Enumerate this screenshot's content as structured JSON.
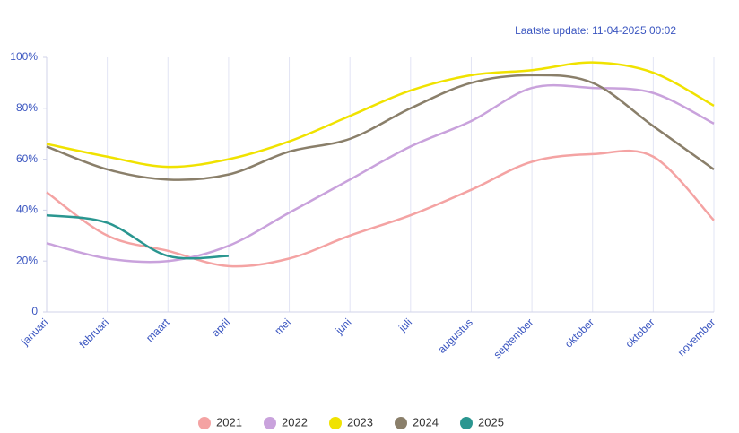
{
  "chart_data": {
    "type": "line",
    "annotation": "Laatste update: 11-04-2025 00:02",
    "categories": [
      "januari",
      "februari",
      "maart",
      "april",
      "mei",
      "juni",
      "juli",
      "augustus",
      "september",
      "oktober",
      "oktober",
      "november"
    ],
    "series": [
      {
        "name": "2021",
        "color": "#f4a3a3",
        "values": [
          47,
          30,
          24,
          18,
          21,
          30,
          38,
          48,
          59,
          62,
          61,
          36
        ]
      },
      {
        "name": "2022",
        "color": "#c9a2dc",
        "values": [
          27,
          21,
          20,
          26,
          39,
          52,
          65,
          75,
          88,
          88,
          86,
          74
        ]
      },
      {
        "name": "2023",
        "color": "#f0e200",
        "values": [
          66,
          61,
          57,
          60,
          67,
          77,
          87,
          93,
          95,
          98,
          94,
          81
        ]
      },
      {
        "name": "2024",
        "color": "#8a7f6a",
        "values": [
          65,
          56,
          52,
          54,
          63,
          68,
          80,
          90,
          93,
          90,
          73,
          56
        ]
      },
      {
        "name": "2025",
        "color": "#2a9690",
        "values": [
          38,
          35,
          22,
          22,
          null,
          null,
          null,
          null,
          null,
          null,
          null,
          null
        ]
      }
    ],
    "ylim": [
      0,
      100
    ],
    "yticks": [
      0,
      {
        "value": 20,
        "label": "20%"
      },
      {
        "value": 40,
        "label": "40%"
      },
      {
        "value": 60,
        "label": "60%"
      },
      {
        "value": 80,
        "label": "80%"
      },
      {
        "value": 100,
        "label": "100%"
      }
    ],
    "grid": true,
    "legend": "bottom"
  }
}
